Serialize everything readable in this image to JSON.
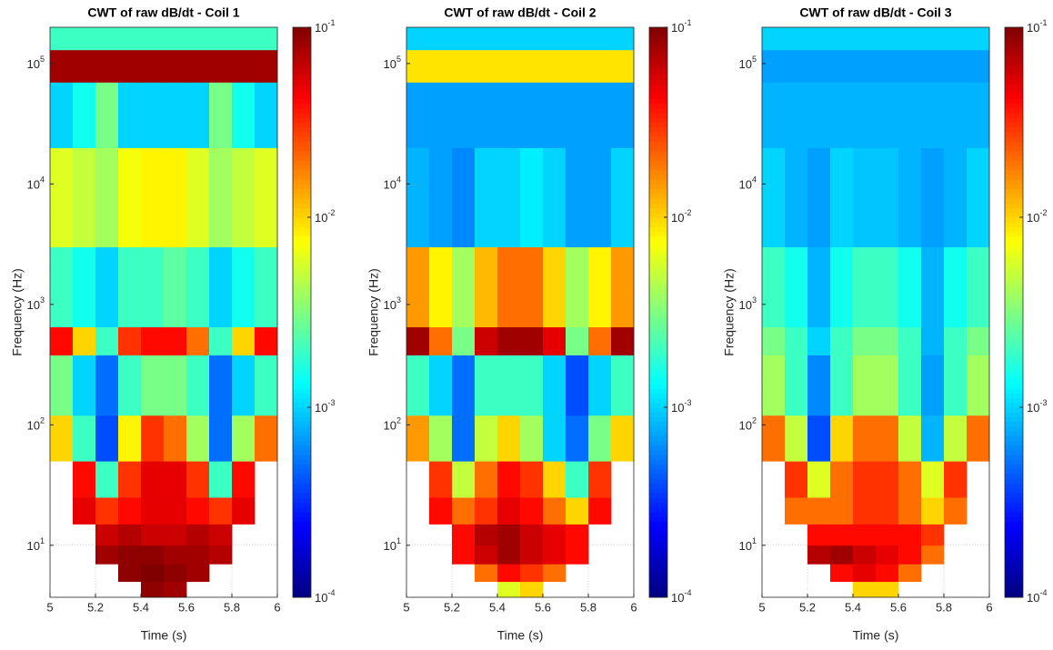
{
  "chart_data": [
    {
      "type": "heatmap",
      "title": "CWT of raw dB/dt - Coil 1",
      "xlabel": "Time (s)",
      "ylabel": "Frequency (Hz)",
      "xlim": [
        5,
        6
      ],
      "xticks": [
        5,
        5.2,
        5.4,
        5.6,
        5.8,
        6
      ],
      "ylim": [
        3.7,
        200000
      ],
      "yscale": "log",
      "yticks": [
        {
          "value": 10,
          "label": "10",
          "exponent": "1"
        },
        {
          "value": 100,
          "label": "10",
          "exponent": "2"
        },
        {
          "value": 1000,
          "label": "10",
          "exponent": "3"
        },
        {
          "value": 10000,
          "label": "10",
          "exponent": "4"
        },
        {
          "value": 100000,
          "label": "10",
          "exponent": "5"
        }
      ],
      "grid": true,
      "xbins": [
        5,
        5.1,
        5.2,
        5.3,
        5.4,
        5.5,
        5.6,
        5.7,
        5.8,
        5.9,
        6
      ],
      "ybins": [
        3.7,
        5,
        7,
        10,
        15,
        25,
        50,
        120,
        380,
        650,
        3000,
        20000,
        70000,
        130000,
        200000
      ],
      "z": [
        [
          null,
          null,
          null,
          null,
          0.09,
          0.08,
          null,
          null,
          null,
          null
        ],
        [
          null,
          null,
          null,
          0.09,
          0.1,
          0.09,
          0.08,
          null,
          null,
          null
        ],
        [
          null,
          null,
          0.08,
          0.09,
          0.09,
          0.08,
          0.08,
          0.07,
          null,
          null
        ],
        [
          null,
          null,
          0.06,
          0.07,
          0.06,
          0.06,
          0.07,
          0.06,
          null,
          null
        ],
        [
          null,
          0.05,
          0.03,
          0.04,
          0.05,
          0.05,
          0.04,
          0.03,
          0.05,
          null
        ],
        [
          null,
          0.04,
          0.002,
          0.03,
          0.05,
          0.05,
          0.03,
          0.002,
          0.04,
          null
        ],
        [
          0.01,
          0.002,
          0.0004,
          0.008,
          0.03,
          0.02,
          0.004,
          0.0005,
          0.004,
          0.02
        ],
        [
          0.003,
          0.001,
          0.0005,
          0.002,
          0.003,
          0.003,
          0.002,
          0.0005,
          0.001,
          0.002
        ],
        [
          0.04,
          0.01,
          0.002,
          0.03,
          0.04,
          0.04,
          0.02,
          0.002,
          0.01,
          0.04
        ],
        [
          0.002,
          0.0015,
          0.001,
          0.002,
          0.002,
          0.0025,
          0.002,
          0.001,
          0.0015,
          0.002
        ],
        [
          0.006,
          0.005,
          0.004,
          0.007,
          0.008,
          0.008,
          0.006,
          0.004,
          0.005,
          0.006
        ],
        [
          0.001,
          0.0015,
          0.003,
          0.001,
          0.001,
          0.001,
          0.001,
          0.003,
          0.0015,
          0.001
        ],
        [
          0.08,
          0.08,
          0.08,
          0.08,
          0.08,
          0.08,
          0.08,
          0.08,
          0.08,
          0.08
        ],
        [
          0.002,
          0.002,
          0.002,
          0.002,
          0.002,
          0.002,
          0.002,
          0.002,
          0.002,
          0.002
        ]
      ],
      "colorbar": {
        "scale": "log",
        "colormap": "jet",
        "clim": [
          0.0001,
          0.1
        ],
        "ticks": [
          {
            "value": 0.0001,
            "label": "10",
            "exponent": "-4"
          },
          {
            "value": 0.001,
            "label": "10",
            "exponent": "-3"
          },
          {
            "value": 0.01,
            "label": "10",
            "exponent": "-2"
          },
          {
            "value": 0.1,
            "label": "10",
            "exponent": "-1"
          }
        ]
      }
    },
    {
      "type": "heatmap",
      "title": "CWT of raw dB/dt - Coil 2",
      "xlabel": "Time (s)",
      "ylabel": "Frequency (Hz)",
      "xlim": [
        5,
        6
      ],
      "xticks": [
        5,
        5.2,
        5.4,
        5.6,
        5.8,
        6
      ],
      "ylim": [
        3.7,
        200000
      ],
      "yscale": "log",
      "yticks": [
        {
          "value": 10,
          "label": "10",
          "exponent": "1"
        },
        {
          "value": 100,
          "label": "10",
          "exponent": "2"
        },
        {
          "value": 1000,
          "label": "10",
          "exponent": "3"
        },
        {
          "value": 10000,
          "label": "10",
          "exponent": "4"
        },
        {
          "value": 100000,
          "label": "10",
          "exponent": "5"
        }
      ],
      "grid": true,
      "xbins": [
        5,
        5.1,
        5.2,
        5.3,
        5.4,
        5.5,
        5.6,
        5.7,
        5.8,
        5.9,
        6
      ],
      "ybins": [
        3.7,
        5,
        7,
        10,
        15,
        25,
        50,
        120,
        380,
        650,
        3000,
        20000,
        70000,
        130000,
        200000
      ],
      "z": [
        [
          null,
          null,
          null,
          null,
          0.006,
          0.01,
          null,
          null,
          null,
          null
        ],
        [
          null,
          null,
          null,
          0.02,
          0.04,
          0.03,
          0.02,
          null,
          null,
          null
        ],
        [
          null,
          null,
          0.04,
          0.06,
          0.08,
          0.06,
          0.05,
          0.04,
          null,
          null
        ],
        [
          null,
          null,
          0.04,
          0.07,
          0.08,
          0.06,
          0.05,
          0.04,
          null,
          null
        ],
        [
          null,
          0.04,
          0.02,
          0.03,
          0.05,
          0.04,
          0.02,
          0.01,
          0.04,
          null
        ],
        [
          null,
          0.03,
          0.005,
          0.02,
          0.04,
          0.03,
          0.01,
          0.002,
          0.03,
          null
        ],
        [
          0.015,
          0.004,
          0.0005,
          0.005,
          0.01,
          0.004,
          0.001,
          0.0005,
          0.003,
          0.01
        ],
        [
          0.002,
          0.001,
          0.0005,
          0.002,
          0.002,
          0.002,
          0.001,
          0.0004,
          0.001,
          0.002
        ],
        [
          0.08,
          0.02,
          0.003,
          0.06,
          0.08,
          0.08,
          0.05,
          0.003,
          0.02,
          0.08
        ],
        [
          0.015,
          0.008,
          0.004,
          0.012,
          0.02,
          0.02,
          0.01,
          0.004,
          0.008,
          0.015
        ],
        [
          0.0008,
          0.0007,
          0.0006,
          0.001,
          0.001,
          0.0012,
          0.001,
          0.0007,
          0.0007,
          0.001
        ],
        [
          0.0007,
          0.0007,
          0.0007,
          0.0007,
          0.0007,
          0.0007,
          0.0007,
          0.0007,
          0.0007,
          0.0007
        ],
        [
          0.009,
          0.009,
          0.009,
          0.009,
          0.009,
          0.009,
          0.009,
          0.009,
          0.009,
          0.009
        ],
        [
          0.001,
          0.001,
          0.001,
          0.001,
          0.001,
          0.001,
          0.001,
          0.001,
          0.001,
          0.001
        ]
      ],
      "colorbar": {
        "scale": "log",
        "colormap": "jet",
        "clim": [
          0.0001,
          0.1
        ],
        "ticks": [
          {
            "value": 0.0001,
            "label": "10",
            "exponent": "-4"
          },
          {
            "value": 0.001,
            "label": "10",
            "exponent": "-3"
          },
          {
            "value": 0.01,
            "label": "10",
            "exponent": "-2"
          },
          {
            "value": 0.1,
            "label": "10",
            "exponent": "-1"
          }
        ]
      }
    },
    {
      "type": "heatmap",
      "title": "CWT of raw dB/dt - Coil 3",
      "xlabel": "Time (s)",
      "ylabel": "Frequency (Hz)",
      "xlim": [
        5,
        6
      ],
      "xticks": [
        5,
        5.2,
        5.4,
        5.6,
        5.8,
        6
      ],
      "ylim": [
        3.7,
        200000
      ],
      "yscale": "log",
      "yticks": [
        {
          "value": 10,
          "label": "10",
          "exponent": "1"
        },
        {
          "value": 100,
          "label": "10",
          "exponent": "2"
        },
        {
          "value": 1000,
          "label": "10",
          "exponent": "3"
        },
        {
          "value": 10000,
          "label": "10",
          "exponent": "4"
        },
        {
          "value": 100000,
          "label": "10",
          "exponent": "5"
        }
      ],
      "grid": true,
      "xbins": [
        5,
        5.1,
        5.2,
        5.3,
        5.4,
        5.5,
        5.6,
        5.7,
        5.8,
        5.9,
        6
      ],
      "ybins": [
        3.7,
        5,
        7,
        10,
        15,
        25,
        50,
        120,
        380,
        650,
        3000,
        20000,
        70000,
        130000,
        200000
      ],
      "z": [
        [
          null,
          null,
          null,
          null,
          0.01,
          0.01,
          null,
          null,
          null,
          null
        ],
        [
          null,
          null,
          null,
          0.04,
          0.05,
          0.04,
          0.02,
          null,
          null,
          null
        ],
        [
          null,
          null,
          0.07,
          0.08,
          0.06,
          0.05,
          0.04,
          0.02,
          null,
          null
        ],
        [
          null,
          null,
          0.04,
          0.04,
          0.04,
          0.04,
          0.04,
          0.03,
          null,
          null
        ],
        [
          null,
          0.02,
          0.02,
          0.02,
          0.03,
          0.03,
          0.02,
          0.01,
          0.02,
          null
        ],
        [
          null,
          0.03,
          0.006,
          0.02,
          0.03,
          0.03,
          0.02,
          0.006,
          0.03,
          null
        ],
        [
          0.02,
          0.005,
          0.0004,
          0.01,
          0.02,
          0.02,
          0.005,
          0.0008,
          0.005,
          0.02
        ],
        [
          0.004,
          0.002,
          0.0006,
          0.002,
          0.004,
          0.004,
          0.002,
          0.0007,
          0.002,
          0.004
        ],
        [
          0.003,
          0.002,
          0.001,
          0.002,
          0.003,
          0.003,
          0.002,
          0.0008,
          0.002,
          0.003
        ],
        [
          0.002,
          0.0015,
          0.0008,
          0.0015,
          0.002,
          0.002,
          0.0015,
          0.0008,
          0.0015,
          0.002
        ],
        [
          0.001,
          0.0008,
          0.0007,
          0.001,
          0.0009,
          0.0009,
          0.0008,
          0.0007,
          0.0008,
          0.001
        ],
        [
          0.0008,
          0.0008,
          0.0008,
          0.0008,
          0.0008,
          0.0008,
          0.0008,
          0.0008,
          0.0008,
          0.0008
        ],
        [
          0.0007,
          0.0007,
          0.0007,
          0.0007,
          0.0007,
          0.0007,
          0.0007,
          0.0007,
          0.0007,
          0.0007
        ],
        [
          0.001,
          0.001,
          0.001,
          0.001,
          0.001,
          0.001,
          0.001,
          0.001,
          0.001,
          0.001
        ]
      ],
      "colorbar": {
        "scale": "log",
        "colormap": "jet",
        "clim": [
          0.0001,
          0.1
        ],
        "ticks": [
          {
            "value": 0.0001,
            "label": "10",
            "exponent": "-4"
          },
          {
            "value": 0.001,
            "label": "10",
            "exponent": "-3"
          },
          {
            "value": 0.01,
            "label": "10",
            "exponent": "-2"
          },
          {
            "value": 0.1,
            "label": "10",
            "exponent": "-1"
          }
        ]
      }
    }
  ]
}
